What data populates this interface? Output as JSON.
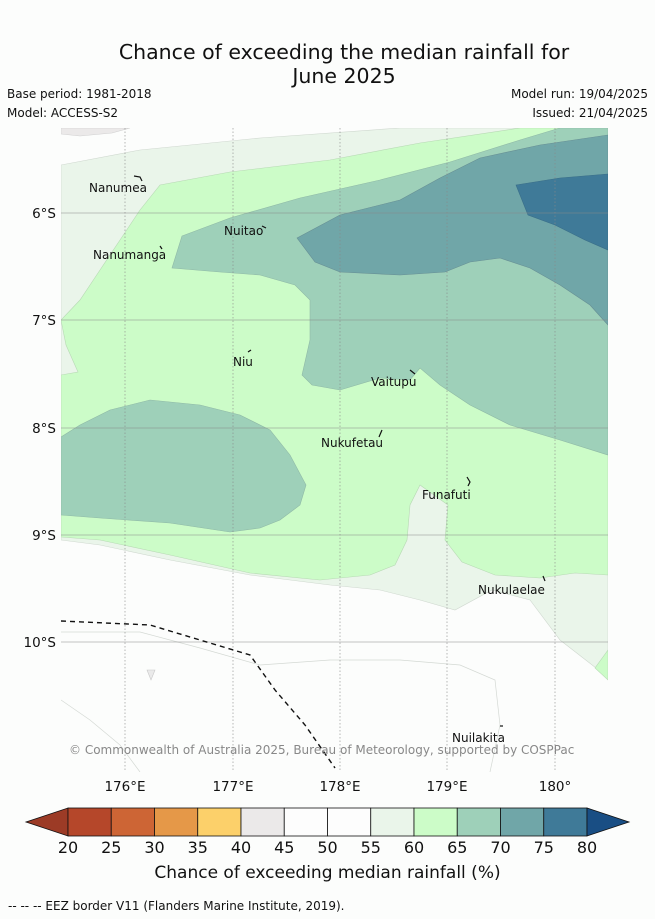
{
  "title_line1": "Chance of exceeding the median rainfall for",
  "title_line2": "June 2025",
  "base_period": "Base period: 1981-2018",
  "model": "Model: ACCESS-S2",
  "model_run": "Model run: 19/04/2025",
  "issued": "Issued: 21/04/2025",
  "map": {
    "lon_ticks": [
      "176°E",
      "177°E",
      "178°E",
      "179°E",
      "180°"
    ],
    "lat_ticks": [
      "6°S",
      "7°S",
      "8°S",
      "9°S",
      "10°S"
    ],
    "places": [
      "Nanumea",
      "Nuitao",
      "Nanumanga",
      "Niu",
      "Vaitupu",
      "Nukufetau",
      "Funafuti",
      "Nukulaelae",
      "Nuilakita"
    ],
    "credit": "© Commonwealth of Australia 2025, Bureau of Meteorology, supported by COSPPac"
  },
  "colorbar": {
    "ticks": [
      "20",
      "25",
      "30",
      "35",
      "40",
      "45",
      "50",
      "55",
      "60",
      "65",
      "70",
      "75",
      "80"
    ],
    "colors": [
      "#b5472a",
      "#cd6535",
      "#e59848",
      "#fcd06a",
      "#ebe9e9",
      "#fdfdfd",
      "#fdfdfd",
      "#eaf5ea",
      "#ccfcc8",
      "#9ed0b9",
      "#70a6a8",
      "#3f7a98"
    ],
    "under_color": "#9c3b26",
    "over_color": "#194e84",
    "label": "Chance of exceeding median rainfall (%)"
  },
  "footer": "--  --  -- EEZ border V11 (Flanders Marine Institute, 2019)."
}
